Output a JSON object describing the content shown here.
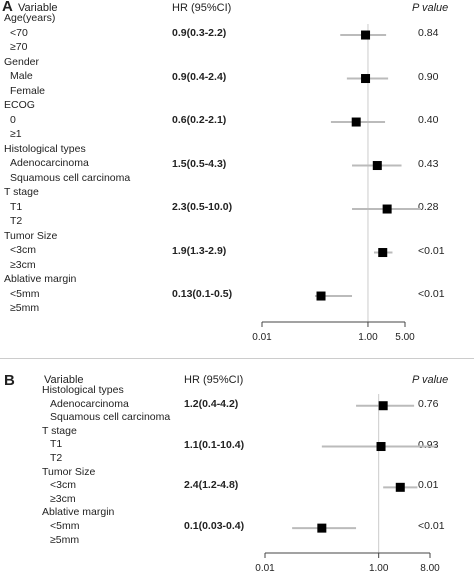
{
  "panels": [
    {
      "label": "A",
      "headers": {
        "variable": "Variable",
        "hr": "HR (95%CI)",
        "p": "P value"
      },
      "rows": [
        {
          "label": "Age(years)",
          "level": 0
        },
        {
          "label": "<70",
          "level": 1
        },
        {
          "label": "≥70",
          "level": 1
        },
        {
          "label": "Gender",
          "level": 0
        },
        {
          "label": "Male",
          "level": 1
        },
        {
          "label": "Female",
          "level": 1
        },
        {
          "label": "ECOG",
          "level": 0
        },
        {
          "label": "0",
          "level": 1
        },
        {
          "label": "≥1",
          "level": 1
        },
        {
          "label": "Histological types",
          "level": 0
        },
        {
          "label": "Adenocarcinoma",
          "level": 1
        },
        {
          "label": "Squamous cell carcinoma",
          "level": 1
        },
        {
          "label": "T stage",
          "level": 0
        },
        {
          "label": "T1",
          "level": 1
        },
        {
          "label": "T2",
          "level": 1
        },
        {
          "label": "Tumor Size",
          "level": 0
        },
        {
          "label": "<3cm",
          "level": 1
        },
        {
          "label": "≥3cm",
          "level": 1
        },
        {
          "label": "Ablative margin",
          "level": 0
        },
        {
          "label": "<5mm",
          "level": 1
        },
        {
          "label": "≥5mm",
          "level": 1
        }
      ],
      "axis_ticks": [
        "0.01",
        "1.00",
        "5.00"
      ]
    },
    {
      "label": "B",
      "headers": {
        "variable": "Variable",
        "hr": "HR (95%CI)",
        "p": "P value"
      },
      "rows": [
        {
          "label": "Histological types",
          "level": 0
        },
        {
          "label": "Adenocarcinoma",
          "level": 1
        },
        {
          "label": "Squamous cell carcinoma",
          "level": 1
        },
        {
          "label": "T stage",
          "level": 0
        },
        {
          "label": "T1",
          "level": 1
        },
        {
          "label": "T2",
          "level": 1
        },
        {
          "label": "Tumor Size",
          "level": 0
        },
        {
          "label": "<3cm",
          "level": 1
        },
        {
          "label": "≥3cm",
          "level": 1
        },
        {
          "label": "Ablative margin",
          "level": 0
        },
        {
          "label": "<5mm",
          "level": 1
        },
        {
          "label": "≥5mm",
          "level": 1
        }
      ],
      "axis_ticks": [
        "0.01",
        "1.00",
        "8.00"
      ]
    }
  ],
  "chart_data": [
    {
      "type": "forest",
      "panel": "A",
      "x_scale": "log",
      "reference_line": 1.0,
      "xlim": [
        0.01,
        5.0
      ],
      "x_ticks": [
        0.01,
        1.0,
        5.0
      ],
      "estimates": [
        {
          "variable": "Age(years)",
          "hr_text": "0.9(0.3-2.2)",
          "hr": 0.9,
          "lo": 0.3,
          "hi": 2.2,
          "p": "0.84"
        },
        {
          "variable": "Gender",
          "hr_text": "0.9(0.4-2.4)",
          "hr": 0.9,
          "lo": 0.4,
          "hi": 2.4,
          "p": "0.90"
        },
        {
          "variable": "ECOG",
          "hr_text": "0.6(0.2-2.1)",
          "hr": 0.6,
          "lo": 0.2,
          "hi": 2.1,
          "p": "0.40"
        },
        {
          "variable": "Histological types",
          "hr_text": "1.5(0.5-4.3)",
          "hr": 1.5,
          "lo": 0.5,
          "hi": 4.3,
          "p": "0.43"
        },
        {
          "variable": "T stage",
          "hr_text": "2.3(0.5-10.0)",
          "hr": 2.3,
          "lo": 0.5,
          "hi": 10.0,
          "p": "0.28"
        },
        {
          "variable": "Tumor Size",
          "hr_text": "1.9(1.3-2.9)",
          "hr": 1.9,
          "lo": 1.3,
          "hi": 2.9,
          "p": "<0.01"
        },
        {
          "variable": "Ablative margin",
          "hr_text": "0.13(0.1-0.5)",
          "hr": 0.13,
          "lo": 0.1,
          "hi": 0.5,
          "p": "<0.01"
        }
      ]
    },
    {
      "type": "forest",
      "panel": "B",
      "x_scale": "log",
      "reference_line": 1.0,
      "xlim": [
        0.01,
        8.0
      ],
      "x_ticks": [
        0.01,
        1.0,
        8.0
      ],
      "estimates": [
        {
          "variable": "Histological types",
          "hr_text": "1.2(0.4-4.2)",
          "hr": 1.2,
          "lo": 0.4,
          "hi": 4.2,
          "p": "0.76"
        },
        {
          "variable": "T stage",
          "hr_text": "1.1(0.1-10.4)",
          "hr": 1.1,
          "lo": 0.1,
          "hi": 10.4,
          "p": "0.93"
        },
        {
          "variable": "Tumor Size",
          "hr_text": "2.4(1.2-4.8)",
          "hr": 2.4,
          "lo": 1.2,
          "hi": 4.8,
          "p": "0.01"
        },
        {
          "variable": "Ablative margin",
          "hr_text": "0.1(0.03-0.4)",
          "hr": 0.1,
          "lo": 0.03,
          "hi": 0.4,
          "p": "<0.01"
        }
      ]
    }
  ],
  "colors": {
    "marker": "#000000",
    "ci_line": "#bbbbbb",
    "reference_line": "#cccccc",
    "axis": "#444444"
  }
}
